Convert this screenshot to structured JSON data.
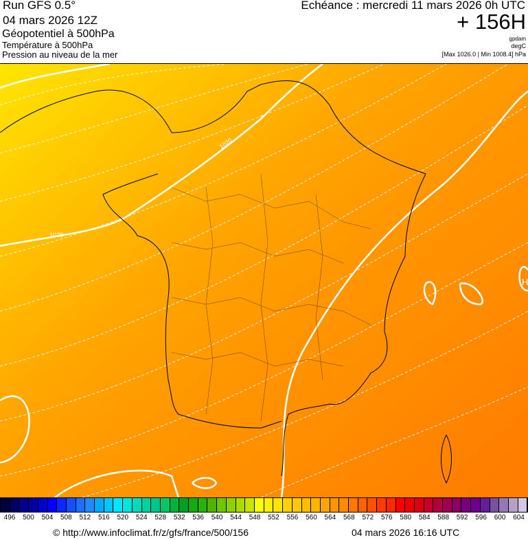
{
  "header": {
    "run": "Run GFS 0.5°",
    "run_date": "04 mars 2026 12Z",
    "field1": "Géopotentiel à 500hPa",
    "field2": "Température à 500hPa",
    "field3": "Pression au niveau de la mer",
    "echeance": "Echéance : mercredi 11 mars 2026 0h UTC",
    "offset": "+ 156H",
    "unit1": "gpdam",
    "unit2": "degC",
    "pressure_range": "[Max 1026.0 | Min 1008.4] hPa"
  },
  "map": {
    "contour_labels": [
      "1020",
      "1020"
    ],
    "high_marker": "H"
  },
  "colorbar": {
    "labels": [
      "496",
      "500",
      "504",
      "508",
      "512",
      "516",
      "520",
      "524",
      "528",
      "532",
      "536",
      "540",
      "544",
      "548",
      "552",
      "556",
      "560",
      "564",
      "568",
      "572",
      "576",
      "580",
      "584",
      "588",
      "592",
      "596",
      "600",
      "604"
    ],
    "colors": [
      "#00003c",
      "#000064",
      "#00008c",
      "#0000a0",
      "#0000d2",
      "#0000ff",
      "#0a28ff",
      "#1450ff",
      "#1e6eff",
      "#1e8cff",
      "#00aaff",
      "#00c8ff",
      "#00e6ff",
      "#00e6dc",
      "#00dcbe",
      "#00d2a0",
      "#00c88c",
      "#00c864",
      "#00b43c",
      "#00a028",
      "#14aa14",
      "#28b400",
      "#50b400",
      "#6ec800",
      "#8cd200",
      "#aadc00",
      "#c8e600",
      "#ffff00",
      "#fff000",
      "#ffe600",
      "#ffd200",
      "#ffc800",
      "#ffbe00",
      "#ffb400",
      "#ffa500",
      "#ff9600",
      "#ff8c00",
      "#ff7800",
      "#ff6400",
      "#ff5000",
      "#ff3c00",
      "#ff2800",
      "#ff0000",
      "#f00000",
      "#dc0014",
      "#c80028",
      "#b4003c",
      "#a00050",
      "#8c0064",
      "#78007a",
      "#6e0090",
      "#641e9a",
      "#7850a0",
      "#9678b4",
      "#b4a0c8",
      "#d2c8e6"
    ]
  },
  "footer": {
    "source": "© http://www.infoclimat.fr/z/gfs/france/500/156",
    "generated": "04 mars 2026 16:16 UTC"
  }
}
